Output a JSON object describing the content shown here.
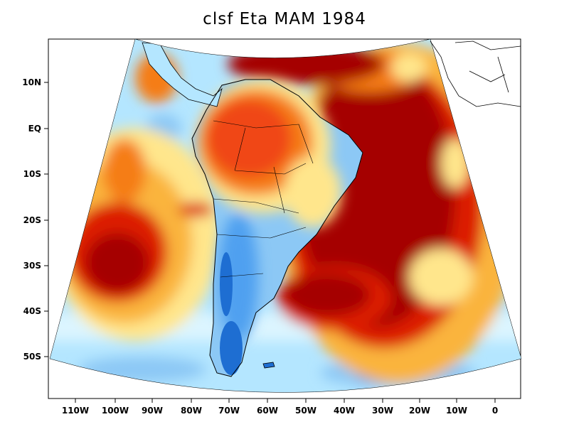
{
  "title": "clsf Eta MAM 1984",
  "y_axis_labels": [
    "10N",
    "EQ",
    "10S",
    "20S",
    "30S",
    "40S",
    "50S"
  ],
  "x_axis_labels": [
    "110W",
    "100W",
    "90W",
    "80W",
    "70W",
    "60W",
    "50W",
    "40W",
    "30W",
    "20W",
    "10W",
    "0"
  ],
  "colors": {
    "dark_red": "#a50000",
    "red": "#dc1e00",
    "red_orange": "#f04614",
    "orange": "#f57d14",
    "light_orange": "#fab43c",
    "pale_yellow": "#ffe68c",
    "pale_blue": "#dcf5ff",
    "light_blue": "#b4e6ff",
    "mid_blue": "#8cc8f5",
    "blue": "#50a0f0",
    "dark_blue": "#1e6ed2",
    "land_outline": "#000000"
  }
}
